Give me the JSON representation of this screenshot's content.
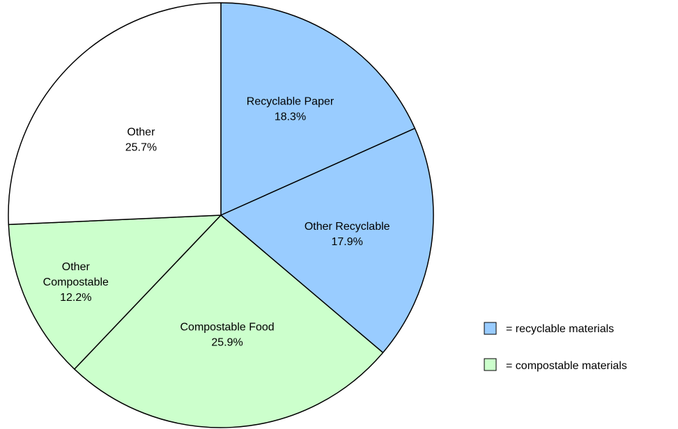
{
  "chart_data": {
    "type": "pie",
    "title": "",
    "start_angle_deg": 0,
    "direction": "clockwise",
    "slices": [
      {
        "label": "Recyclable Paper",
        "value": 18.3,
        "display": "18.3%",
        "color": "#99ccff",
        "category": "recyclable"
      },
      {
        "label": "Other Recyclable",
        "value": 17.9,
        "display": "17.9%",
        "color": "#99ccff",
        "category": "recyclable"
      },
      {
        "label": "Compostable Food",
        "value": 25.9,
        "display": "25.9%",
        "color": "#ccffcc",
        "category": "compostable"
      },
      {
        "label": "Other Compostable",
        "value": 12.2,
        "display": "12.2%",
        "color": "#ccffcc",
        "category": "compostable"
      },
      {
        "label": "Other",
        "value": 25.7,
        "display": "25.7%",
        "color": "#ffffff",
        "category": "other"
      }
    ],
    "legend": {
      "placement": "bottom-right",
      "entries": [
        {
          "text": "= recyclable materials",
          "color": "#99ccff"
        },
        {
          "text": "= compostable materials",
          "color": "#ccffcc"
        }
      ]
    },
    "stroke_color": "#000000"
  }
}
